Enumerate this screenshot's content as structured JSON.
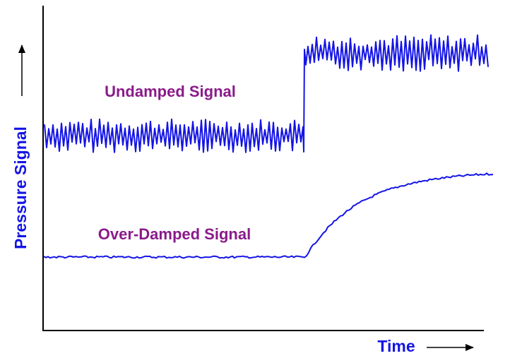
{
  "axes": {
    "y_label": "Pressure Signal",
    "x_label": "Time"
  },
  "annotations": {
    "undamped": "Undamped Signal",
    "over_damped": "Over-Damped Signal"
  }
}
